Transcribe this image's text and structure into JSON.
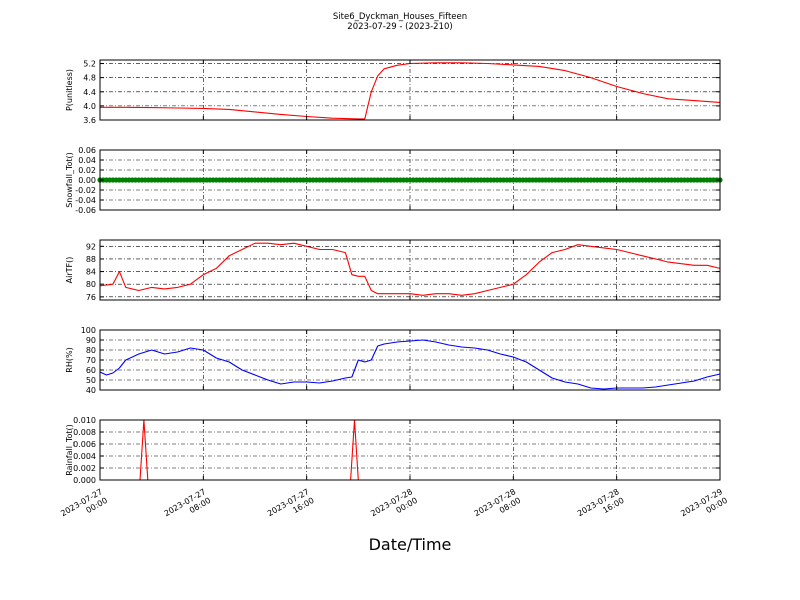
{
  "figure": {
    "title_line1": "Site6_Dyckman_Houses_Fifteen",
    "title_line2": "2023-07-29 - (2023-210)",
    "xlabel": "Date/Time"
  },
  "chart_data": [
    {
      "type": "line",
      "ylabel": "P(unitless)",
      "ylim": [
        3.6,
        5.3
      ],
      "yticks": [
        "5.2",
        "4.8",
        "4.4",
        "4.0",
        "3.6"
      ],
      "color": "#ff0000",
      "grid": true,
      "x_hours": [
        0,
        2,
        4,
        6,
        8,
        10,
        12,
        14,
        16,
        18,
        20,
        20.5,
        21,
        21.5,
        22,
        23,
        24,
        26,
        28,
        30,
        32,
        34,
        36,
        38,
        40,
        42,
        44,
        46,
        48
      ],
      "values": [
        3.96,
        3.96,
        3.95,
        3.94,
        3.93,
        3.9,
        3.83,
        3.76,
        3.7,
        3.65,
        3.63,
        3.63,
        4.4,
        4.85,
        5.05,
        5.15,
        5.2,
        5.22,
        5.22,
        5.2,
        5.16,
        5.12,
        5.0,
        4.8,
        4.55,
        4.35,
        4.2,
        4.15,
        4.1
      ]
    },
    {
      "type": "scatter",
      "ylabel": "Snowfall_Tot()",
      "ylim": [
        -0.06,
        0.06
      ],
      "yticks": [
        "0.06",
        "0.04",
        "0.02",
        "0.00",
        "-0.02",
        "-0.04",
        "-0.06"
      ],
      "color": "#008000",
      "grid": true,
      "x_hours": [
        0,
        48
      ],
      "values": [
        0,
        0
      ]
    },
    {
      "type": "line",
      "ylabel": "AirTF()",
      "ylim": [
        75,
        94
      ],
      "yticks": [
        "92",
        "88",
        "84",
        "80",
        "76"
      ],
      "color": "#ff0000",
      "grid": true,
      "x_hours": [
        0,
        1,
        1.5,
        2,
        3,
        4,
        5,
        6,
        7,
        8,
        9,
        10,
        11,
        12,
        13,
        14,
        15,
        16,
        17,
        18,
        19,
        19.5,
        20,
        20.5,
        21,
        21.5,
        22,
        23,
        24,
        25,
        26,
        27,
        28,
        29,
        30,
        31,
        32,
        33,
        34,
        35,
        36,
        37,
        38,
        39,
        40,
        41,
        42,
        43,
        44,
        45,
        46,
        47,
        48
      ],
      "values": [
        79.5,
        80,
        84,
        79,
        78,
        79,
        78.5,
        79,
        80,
        83,
        85,
        89,
        91,
        93,
        93,
        92.5,
        93,
        92,
        91,
        91,
        90,
        83,
        82.5,
        82.5,
        78,
        77,
        77,
        77,
        77,
        76.5,
        77,
        77,
        76.5,
        77,
        78,
        79,
        80,
        83,
        87,
        90,
        91,
        92.5,
        92,
        91.5,
        91,
        90,
        89,
        88,
        87,
        86.5,
        86,
        86,
        85
      ]
    },
    {
      "type": "line",
      "ylabel": "RH(%)",
      "ylim": [
        40,
        100
      ],
      "yticks": [
        "100",
        "90",
        "80",
        "70",
        "60",
        "50",
        "40"
      ],
      "color": "#0000ff",
      "grid": true,
      "x_hours": [
        0,
        0.5,
        1,
        1.5,
        2,
        3,
        4,
        5,
        6,
        7,
        8,
        9,
        10,
        11,
        12,
        13,
        14,
        15,
        16,
        17,
        18,
        19,
        19.5,
        20,
        20.5,
        21,
        21.5,
        22,
        23,
        24,
        25,
        26,
        27,
        28,
        29,
        30,
        31,
        32,
        33,
        34,
        35,
        36,
        37,
        38,
        39,
        40,
        41,
        42,
        43,
        44,
        45,
        46,
        47,
        48
      ],
      "values": [
        58,
        55,
        57,
        62,
        70,
        76,
        80,
        76,
        78,
        82,
        80,
        72,
        68,
        60,
        55,
        50,
        46,
        48,
        48,
        47,
        49,
        52,
        53,
        70,
        68,
        70,
        84,
        86,
        88,
        89,
        90,
        88,
        85,
        83,
        82,
        80,
        76,
        73,
        68,
        60,
        52,
        48,
        46,
        42,
        41,
        42,
        42,
        42,
        43,
        45,
        47,
        49,
        53,
        56
      ]
    },
    {
      "type": "line",
      "ylabel": "Rainfall_Tot()",
      "ylim": [
        0,
        0.01
      ],
      "yticks": [
        "0.010",
        "0.008",
        "0.006",
        "0.004",
        "0.002",
        "0.000"
      ],
      "color": "#ff0000",
      "grid": true,
      "x_hours": [
        0,
        3.1,
        3.4,
        3.7,
        19.4,
        19.7,
        20.0,
        48
      ],
      "values": [
        0,
        0,
        0.01,
        0,
        0,
        0.01,
        0,
        0
      ]
    }
  ],
  "x_axis": {
    "range_hours": [
      0,
      48
    ],
    "ticks": [
      {
        "hour": 0,
        "line1": "2023-07-27",
        "line2": "00:00"
      },
      {
        "hour": 8,
        "line1": "2023-07-27",
        "line2": "08:00"
      },
      {
        "hour": 16,
        "line1": "2023-07-27",
        "line2": "16:00"
      },
      {
        "hour": 24,
        "line1": "2023-07-28",
        "line2": "00:00"
      },
      {
        "hour": 32,
        "line1": "2023-07-28",
        "line2": "08:00"
      },
      {
        "hour": 40,
        "line1": "2023-07-28",
        "line2": "16:00"
      },
      {
        "hour": 48,
        "line1": "2023-07-29",
        "line2": "00:00"
      }
    ]
  }
}
